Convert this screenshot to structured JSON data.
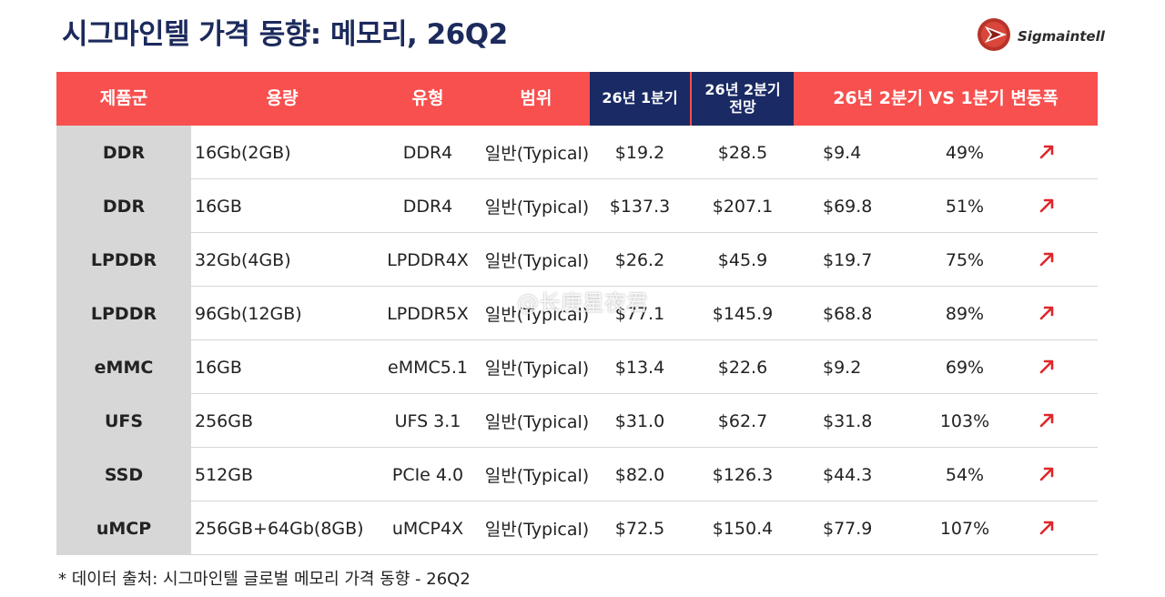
{
  "title": "시그마인텔 가격 동향: 메모리, 26Q2",
  "logo": {
    "text": "Sigmaintell"
  },
  "headers": {
    "group": "제품군",
    "capacity": "용량",
    "type": "유형",
    "range": "범위",
    "q1": "26년 1분기",
    "q2_line1": "26년 2분기",
    "q2_line2": "전망",
    "change": "26년 2분기 VS 1분기 변동폭"
  },
  "rows": [
    {
      "group": "DDR",
      "capacity": "16Gb(2GB)",
      "type": "DDR4",
      "range": "일반(Typical)",
      "q1": "$19.2",
      "q2": "$28.5",
      "diff": "$9.4",
      "pct": "49%",
      "trend": "up-arrow-icon"
    },
    {
      "group": "DDR",
      "capacity": "16GB",
      "type": "DDR4",
      "range": "일반(Typical)",
      "q1": "$137.3",
      "q2": "$207.1",
      "diff": "$69.8",
      "pct": "51%",
      "trend": "up-arrow-icon"
    },
    {
      "group": "LPDDR",
      "capacity": "32Gb(4GB)",
      "type": "LPDDR4X",
      "range": "일반(Typical)",
      "q1": "$26.2",
      "q2": "$45.9",
      "diff": "$19.7",
      "pct": "75%",
      "trend": "up-arrow-icon"
    },
    {
      "group": "LPDDR",
      "capacity": "96Gb(12GB)",
      "type": "LPDDR5X",
      "range": "일반(Typical)",
      "q1": "$77.1",
      "q2": "$145.9",
      "diff": "$68.8",
      "pct": "89%",
      "trend": "up-arrow-icon"
    },
    {
      "group": "eMMC",
      "capacity": "16GB",
      "type": "eMMC5.1",
      "range": "일반(Typical)",
      "q1": "$13.4",
      "q2": "$22.6",
      "diff": "$9.2",
      "pct": "69%",
      "trend": "up-arrow-icon"
    },
    {
      "group": "UFS",
      "capacity": "256GB",
      "type": "UFS 3.1",
      "range": "일반(Typical)",
      "q1": "$31.0",
      "q2": "$62.7",
      "diff": "$31.8",
      "pct": "103%",
      "trend": "up-arrow-icon"
    },
    {
      "group": "SSD",
      "capacity": "512GB",
      "type": "PCIe 4.0",
      "range": "일반(Typical)",
      "q1": "$82.0",
      "q2": "$126.3",
      "diff": "$44.3",
      "pct": "54%",
      "trend": "up-arrow-icon"
    },
    {
      "group": "uMCP",
      "capacity": "256GB+64Gb(8GB)",
      "type": "uMCP4X",
      "range": "일반(Typical)",
      "q1": "$72.5",
      "q2": "$150.4",
      "diff": "$77.9",
      "pct": "107%",
      "trend": "up-arrow-icon"
    }
  ],
  "watermark": "@长庚星夜君",
  "footnote": "* 데이터 출처: 시그마인텔 글로벌 메모리 가격 동향 - 26Q2",
  "colors": {
    "header_red": "#f7504e",
    "header_navy": "#1a2a64",
    "title_navy": "#1c2a5c",
    "group_gray": "#d7d7d7",
    "arrow_red": "#e0262a"
  }
}
